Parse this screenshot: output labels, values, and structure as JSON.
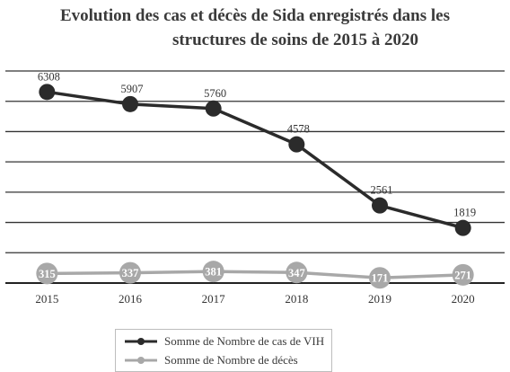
{
  "chart_data": {
    "type": "line",
    "title_line1": "Evolution des cas et décès de Sida enregistrés dans les",
    "title_line2": "structures de soins de 2015 à 2020",
    "x": [
      "2015",
      "2016",
      "2017",
      "2018",
      "2019",
      "2020"
    ],
    "ylim": [
      0,
      7000
    ],
    "grid": true,
    "legend_position": "bottom",
    "series": [
      {
        "name": "Somme de Nombre de cas de VIH",
        "values": [
          6308,
          5907,
          5760,
          4578,
          2561,
          1819
        ],
        "color": "#2b2b2b"
      },
      {
        "name": "Somme de Nombre de décès",
        "values": [
          315,
          337,
          381,
          347,
          171,
          271
        ],
        "color": "#a8a8a8"
      }
    ]
  }
}
